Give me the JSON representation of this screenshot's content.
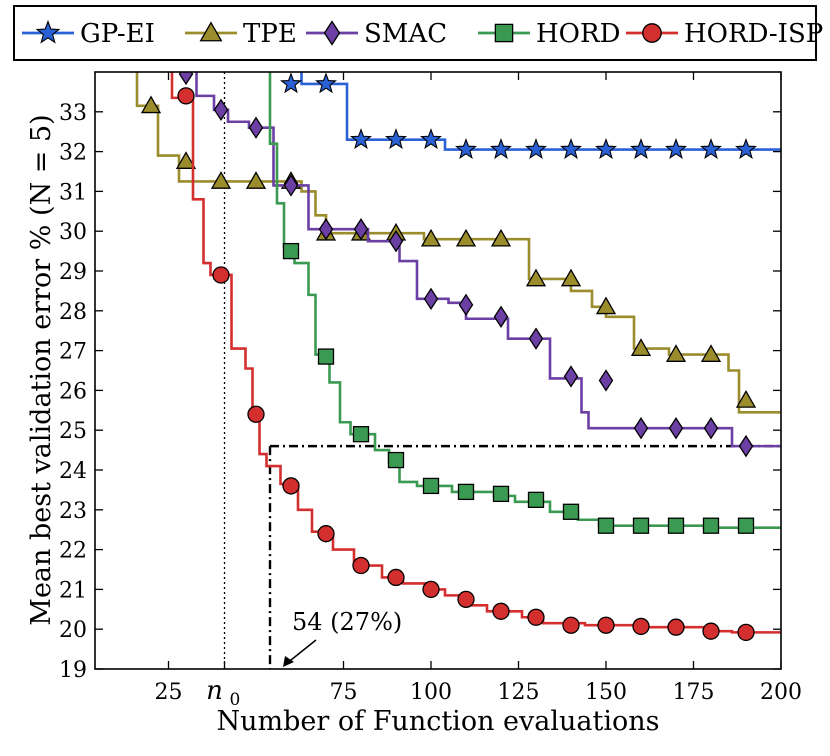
{
  "chart_data": {
    "type": "line",
    "title": "",
    "xlabel": "Number of Function evaluations",
    "ylabel": "Mean best validation error % (N = 5)",
    "xlim": [
      4,
      200
    ],
    "ylim": [
      19,
      34
    ],
    "x_ticks": [
      25,
      75,
      100,
      125,
      150,
      175,
      200
    ],
    "x_tick_labels": [
      "25",
      "75",
      "100",
      "125",
      "150",
      "175",
      "200"
    ],
    "x_special_tick": {
      "label": "n",
      "subscript": "0",
      "x": 41
    },
    "y_ticks": [
      19,
      20,
      21,
      22,
      23,
      24,
      25,
      26,
      27,
      28,
      29,
      30,
      31,
      32,
      33
    ],
    "y_tick_labels": [
      "19",
      "20",
      "21",
      "22",
      "23",
      "24",
      "25",
      "26",
      "27",
      "28",
      "29",
      "30",
      "31",
      "32",
      "33"
    ],
    "legend_position": "top, outside",
    "series": [
      {
        "name": "GP-EI",
        "color": "#2a62d6",
        "marker": "star",
        "line": [
          [
            63,
            34.6
          ],
          [
            63,
            33.7
          ],
          [
            76,
            33.7
          ],
          [
            76,
            32.3
          ],
          [
            104,
            32.3
          ],
          [
            104,
            32.05
          ],
          [
            200,
            32.05
          ]
        ],
        "markers": [
          [
            60,
            33.7
          ],
          [
            70,
            33.7
          ],
          [
            80,
            32.3
          ],
          [
            90,
            32.3
          ],
          [
            100,
            32.3
          ],
          [
            110,
            32.05
          ],
          [
            120,
            32.05
          ],
          [
            130,
            32.05
          ],
          [
            140,
            32.05
          ],
          [
            150,
            32.05
          ],
          [
            160,
            32.05
          ],
          [
            170,
            32.05
          ],
          [
            180,
            32.05
          ],
          [
            190,
            32.05
          ]
        ]
      },
      {
        "name": "TPE",
        "color": "#9b8c2c",
        "marker": "triangle",
        "line": [
          [
            16,
            34.6
          ],
          [
            16,
            33.15
          ],
          [
            22,
            33.15
          ],
          [
            22,
            31.9
          ],
          [
            28,
            31.9
          ],
          [
            28,
            31.25
          ],
          [
            63,
            31.25
          ],
          [
            63,
            31.0
          ],
          [
            67,
            31.0
          ],
          [
            67,
            30.4
          ],
          [
            70,
            30.4
          ],
          [
            70,
            29.95
          ],
          [
            98,
            29.95
          ],
          [
            98,
            29.8
          ],
          [
            128,
            29.8
          ],
          [
            128,
            28.8
          ],
          [
            140,
            28.8
          ],
          [
            140,
            28.5
          ],
          [
            146,
            28.5
          ],
          [
            146,
            28.1
          ],
          [
            150,
            28.1
          ],
          [
            150,
            27.85
          ],
          [
            158,
            27.85
          ],
          [
            158,
            27.05
          ],
          [
            168,
            27.05
          ],
          [
            168,
            26.9
          ],
          [
            185,
            26.9
          ],
          [
            185,
            26.5
          ],
          [
            188,
            26.5
          ],
          [
            188,
            25.45
          ],
          [
            200,
            25.45
          ]
        ],
        "markers": [
          [
            20,
            33.15
          ],
          [
            30,
            31.75
          ],
          [
            40,
            31.25
          ],
          [
            50,
            31.25
          ],
          [
            60,
            31.25
          ],
          [
            70,
            29.95
          ],
          [
            80,
            29.95
          ],
          [
            90,
            29.95
          ],
          [
            100,
            29.8
          ],
          [
            110,
            29.8
          ],
          [
            120,
            29.8
          ],
          [
            130,
            28.8
          ],
          [
            140,
            28.8
          ],
          [
            150,
            28.1
          ],
          [
            160,
            27.05
          ],
          [
            170,
            26.9
          ],
          [
            180,
            26.9
          ],
          [
            190,
            25.75
          ]
        ]
      },
      {
        "name": "SMAC",
        "color": "#6b3fa3",
        "marker": "diamond",
        "line": [
          [
            33,
            34.6
          ],
          [
            33,
            33.4
          ],
          [
            38,
            33.4
          ],
          [
            38,
            33.05
          ],
          [
            42,
            33.05
          ],
          [
            42,
            32.75
          ],
          [
            48,
            32.75
          ],
          [
            48,
            32.6
          ],
          [
            55,
            32.6
          ],
          [
            55,
            31.15
          ],
          [
            65,
            31.15
          ],
          [
            65,
            30.05
          ],
          [
            82,
            30.05
          ],
          [
            82,
            29.75
          ],
          [
            91,
            29.75
          ],
          [
            91,
            29.25
          ],
          [
            96,
            29.25
          ],
          [
            96,
            28.3
          ],
          [
            105,
            28.3
          ],
          [
            105,
            28.2
          ],
          [
            110,
            28.2
          ],
          [
            110,
            27.8
          ],
          [
            122,
            27.8
          ],
          [
            122,
            27.3
          ],
          [
            134,
            27.3
          ],
          [
            134,
            26.3
          ],
          [
            143,
            26.3
          ],
          [
            143,
            25.45
          ],
          [
            145,
            25.45
          ],
          [
            145,
            25.05
          ],
          [
            186,
            25.05
          ],
          [
            186,
            24.6
          ],
          [
            200,
            24.6
          ]
        ],
        "markers": [
          [
            30,
            33.95
          ],
          [
            40,
            33.05
          ],
          [
            50,
            32.6
          ],
          [
            60,
            31.15
          ],
          [
            70,
            30.05
          ],
          [
            80,
            30.05
          ],
          [
            90,
            29.75
          ],
          [
            100,
            28.3
          ],
          [
            110,
            28.15
          ],
          [
            120,
            27.85
          ],
          [
            130,
            27.3
          ],
          [
            140,
            26.35
          ],
          [
            150,
            26.25
          ],
          [
            160,
            25.05
          ],
          [
            170,
            25.05
          ],
          [
            180,
            25.05
          ],
          [
            190,
            24.6
          ]
        ]
      },
      {
        "name": "HORD",
        "color": "#3a9a52",
        "marker": "square",
        "line": [
          [
            54,
            34.6
          ],
          [
            54,
            32.2
          ],
          [
            56,
            32.2
          ],
          [
            56,
            30.7
          ],
          [
            58,
            30.7
          ],
          [
            58,
            29.6
          ],
          [
            61,
            29.6
          ],
          [
            61,
            29.2
          ],
          [
            65,
            29.2
          ],
          [
            65,
            28.4
          ],
          [
            67,
            28.4
          ],
          [
            67,
            26.9
          ],
          [
            71,
            26.9
          ],
          [
            71,
            26.2
          ],
          [
            74,
            26.2
          ],
          [
            74,
            25.2
          ],
          [
            77,
            25.2
          ],
          [
            77,
            24.9
          ],
          [
            84,
            24.9
          ],
          [
            84,
            24.5
          ],
          [
            88,
            24.5
          ],
          [
            88,
            24.2
          ],
          [
            91,
            24.2
          ],
          [
            91,
            23.7
          ],
          [
            96,
            23.7
          ],
          [
            96,
            23.6
          ],
          [
            106,
            23.6
          ],
          [
            106,
            23.45
          ],
          [
            118,
            23.45
          ],
          [
            118,
            23.35
          ],
          [
            124,
            23.35
          ],
          [
            124,
            23.2
          ],
          [
            134,
            23.2
          ],
          [
            134,
            22.95
          ],
          [
            142,
            22.95
          ],
          [
            142,
            22.75
          ],
          [
            148,
            22.75
          ],
          [
            148,
            22.6
          ],
          [
            178,
            22.6
          ],
          [
            178,
            22.55
          ],
          [
            200,
            22.55
          ]
        ],
        "markers": [
          [
            60,
            29.5
          ],
          [
            70,
            26.85
          ],
          [
            80,
            24.9
          ],
          [
            90,
            24.25
          ],
          [
            100,
            23.6
          ],
          [
            110,
            23.45
          ],
          [
            120,
            23.4
          ],
          [
            130,
            23.25
          ],
          [
            140,
            22.95
          ],
          [
            150,
            22.6
          ],
          [
            160,
            22.6
          ],
          [
            170,
            22.6
          ],
          [
            180,
            22.6
          ],
          [
            190,
            22.6
          ]
        ]
      },
      {
        "name": "HORD-ISP",
        "color": "#d42f2f",
        "marker": "circle",
        "line": [
          [
            26,
            34.6
          ],
          [
            26,
            33.35
          ],
          [
            32,
            33.35
          ],
          [
            32,
            30.8
          ],
          [
            35,
            30.8
          ],
          [
            35,
            29.2
          ],
          [
            37,
            29.2
          ],
          [
            37,
            28.9
          ],
          [
            43,
            28.9
          ],
          [
            43,
            27.05
          ],
          [
            47,
            27.05
          ],
          [
            47,
            26.55
          ],
          [
            49,
            26.55
          ],
          [
            49,
            25.4
          ],
          [
            51,
            25.4
          ],
          [
            51,
            24.4
          ],
          [
            53,
            24.4
          ],
          [
            53,
            24.1
          ],
          [
            57,
            24.1
          ],
          [
            57,
            23.65
          ],
          [
            62,
            23.65
          ],
          [
            62,
            23.0
          ],
          [
            66,
            23.0
          ],
          [
            66,
            22.45
          ],
          [
            72,
            22.45
          ],
          [
            72,
            22.0
          ],
          [
            78,
            22.0
          ],
          [
            78,
            21.6
          ],
          [
            86,
            21.6
          ],
          [
            86,
            21.3
          ],
          [
            92,
            21.3
          ],
          [
            92,
            21.15
          ],
          [
            100,
            21.15
          ],
          [
            100,
            21.0
          ],
          [
            104,
            21.0
          ],
          [
            104,
            20.85
          ],
          [
            110,
            20.85
          ],
          [
            110,
            20.6
          ],
          [
            116,
            20.6
          ],
          [
            116,
            20.45
          ],
          [
            126,
            20.45
          ],
          [
            126,
            20.3
          ],
          [
            132,
            20.3
          ],
          [
            132,
            20.15
          ],
          [
            144,
            20.15
          ],
          [
            144,
            20.1
          ],
          [
            158,
            20.1
          ],
          [
            158,
            20.05
          ],
          [
            178,
            20.05
          ],
          [
            178,
            19.95
          ],
          [
            186,
            19.95
          ],
          [
            186,
            19.92
          ],
          [
            200,
            19.92
          ]
        ],
        "markers": [
          [
            30,
            33.4
          ],
          [
            40,
            28.9
          ],
          [
            50,
            25.4
          ],
          [
            60,
            23.6
          ],
          [
            70,
            22.4
          ],
          [
            80,
            21.6
          ],
          [
            90,
            21.3
          ],
          [
            100,
            21.0
          ],
          [
            110,
            20.75
          ],
          [
            120,
            20.45
          ],
          [
            130,
            20.3
          ],
          [
            140,
            20.1
          ],
          [
            150,
            20.1
          ],
          [
            160,
            20.07
          ],
          [
            170,
            20.05
          ],
          [
            180,
            19.95
          ],
          [
            190,
            19.92
          ]
        ]
      }
    ],
    "reference_lines": {
      "n0_x": 41,
      "hord_isp_reach_x": 54,
      "target_y": 24.6,
      "target_x_end": 200
    },
    "annotations": [
      {
        "text": "54 (27%)",
        "points_to": [
          54,
          19
        ]
      }
    ]
  }
}
